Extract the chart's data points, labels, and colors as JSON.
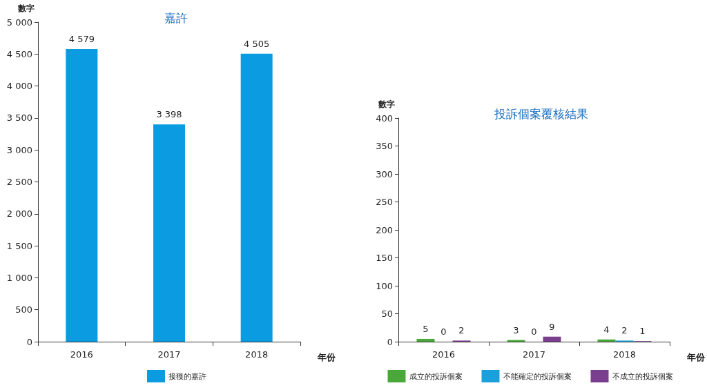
{
  "chart_data": [
    {
      "type": "bar",
      "title": "嘉許",
      "xlabel": "年份",
      "ylabel": "數字",
      "categories": [
        "2016",
        "2017",
        "2018"
      ],
      "series": [
        {
          "name": "接獲的嘉許",
          "color": "#0a9be0",
          "values": [
            4579,
            3398,
            4505
          ]
        }
      ],
      "ylim": [
        0,
        5000
      ],
      "yticks": [
        0,
        {
          "value": 500,
          "label": "500"
        },
        {
          "value": 1000,
          "label": "1 000"
        },
        {
          "value": 1500,
          "label": "1 500"
        },
        {
          "value": 2000,
          "label": "2 000"
        },
        {
          "value": 2500,
          "label": "2 500"
        },
        {
          "value": 3000,
          "label": "3 000"
        },
        {
          "value": 3500,
          "label": "3 500"
        },
        {
          "value": 4000,
          "label": "4 000"
        },
        {
          "value": 4500,
          "label": "4 500"
        },
        {
          "value": 5000,
          "label": "5 000"
        }
      ],
      "value_labels": [
        "4 579",
        "3 398",
        "4 505"
      ],
      "grid": false,
      "legend": "bottom"
    },
    {
      "type": "bar",
      "title": "投訴個案覆核結果",
      "xlabel": "年份",
      "ylabel": "數字",
      "categories": [
        "2016",
        "2017",
        "2018"
      ],
      "series": [
        {
          "name": "成立的投訴個案",
          "color": "#4aa83a",
          "values": [
            5,
            3,
            4
          ]
        },
        {
          "name": "不能確定的投訴個案",
          "color": "#1aa0dc",
          "values": [
            0,
            0,
            2
          ]
        },
        {
          "name": "不成立的投訴個案",
          "color": "#7a3e8e",
          "values": [
            2,
            9,
            1
          ]
        }
      ],
      "ylim": [
        0,
        400
      ],
      "yticks": [
        0,
        50,
        100,
        150,
        200,
        250,
        300,
        350,
        400
      ],
      "data_labels": true,
      "grid": false,
      "legend": "bottom"
    }
  ]
}
